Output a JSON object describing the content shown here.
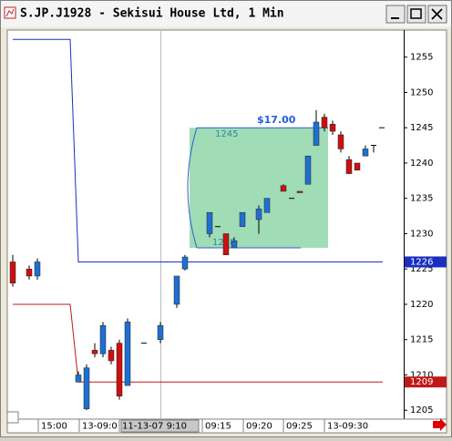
{
  "window_title": "S.JP.J1928 - Sekisui House Ltd, 1 Min",
  "chart_data": {
    "type": "candlestick",
    "up_color": "#1f6fd1",
    "down_color": "#cc1010",
    "ylim": [
      1204,
      1258.7
    ],
    "yticks": [
      1205,
      1210,
      1215,
      1220,
      1225,
      1230,
      1235,
      1240,
      1245,
      1250,
      1255
    ],
    "x_labels": [
      "15:00",
      "13-09:0",
      "11-13-07 9:10",
      "09:15",
      "09:20",
      "09:25",
      "13-09:30"
    ],
    "candles": [
      {
        "open": 1226,
        "high": 1227,
        "low": 1222.5,
        "close": 1223
      },
      null,
      {
        "open": 1225,
        "high": 1225.5,
        "low": 1223.5,
        "close": 1224
      },
      {
        "open": 1224,
        "high": 1226.5,
        "low": 1223.5,
        "close": 1226
      },
      null,
      null,
      null,
      null,
      {
        "open": 1209,
        "high": 1210.5,
        "low": 1209,
        "close": 1210
      },
      {
        "open": 1205.2,
        "high": 1211.5,
        "low": 1205,
        "close": 1211
      },
      {
        "open": 1213.5,
        "high": 1214.5,
        "low": 1212.5,
        "close": 1213
      },
      {
        "open": 1213,
        "high": 1217.5,
        "low": 1212.5,
        "close": 1217
      },
      {
        "open": 1213.5,
        "high": 1214,
        "low": 1211.5,
        "close": 1212
      },
      {
        "open": 1214.5,
        "high": 1215,
        "low": 1206.5,
        "close": 1207
      },
      {
        "open": 1208.5,
        "high": 1218,
        "low": 1208.5,
        "close": 1217.5
      },
      null,
      {
        "open": 1214.5,
        "high": 1214.5,
        "low": 1214.5,
        "close": 1214.5
      },
      null,
      {
        "open": 1215,
        "high": 1217.5,
        "low": 1214.5,
        "close": 1217
      },
      null,
      {
        "open": 1220,
        "high": 1224,
        "low": 1219.5,
        "close": 1224
      },
      {
        "open": 1225,
        "high": 1227,
        "low": 1224.8,
        "close": 1226.7
      },
      null,
      null,
      {
        "open": 1230,
        "high": 1233,
        "low": 1229.5,
        "close": 1233
      },
      {
        "open": 1231,
        "high": 1231,
        "low": 1231,
        "close": 1231
      },
      {
        "open": 1230,
        "high": 1230,
        "low": 1227,
        "close": 1227
      },
      {
        "open": 1228,
        "high": 1229.5,
        "low": 1228,
        "close": 1229
      },
      {
        "open": 1231,
        "high": 1233,
        "low": 1231,
        "close": 1233
      },
      null,
      {
        "open": 1232,
        "high": 1234,
        "low": 1230,
        "close": 1233.5
      },
      {
        "open": 1233,
        "high": 1235,
        "low": 1233,
        "close": 1235
      },
      null,
      {
        "open": 1236.8,
        "high": 1237,
        "low": 1236,
        "close": 1236
      },
      {
        "open": 1235,
        "high": 1235,
        "low": 1235,
        "close": 1235
      },
      {
        "open": 1236,
        "high": 1236,
        "low": 1235.8,
        "close": 1235.8
      },
      {
        "open": 1237,
        "high": 1241,
        "low": 1237,
        "close": 1241
      },
      {
        "open": 1242.5,
        "high": 1247.5,
        "low": 1242.5,
        "close": 1245.8
      },
      {
        "open": 1246.5,
        "high": 1247,
        "low": 1244.5,
        "close": 1245
      },
      {
        "open": 1245.5,
        "high": 1246,
        "low": 1244,
        "close": 1244.5
      },
      {
        "open": 1244,
        "high": 1244.5,
        "low": 1241.5,
        "close": 1242
      },
      {
        "open": 1240.5,
        "high": 1241,
        "low": 1238.5,
        "close": 1238.5
      },
      {
        "open": 1240,
        "high": 1240,
        "low": 1239,
        "close": 1239
      },
      {
        "open": 1241,
        "high": 1242.5,
        "low": 1241,
        "close": 1242
      },
      {
        "open": 1242.5,
        "high": 1242.5,
        "low": 1241.5,
        "close": 1242.5
      },
      {
        "open": 1245,
        "high": 1245,
        "low": 1245,
        "close": 1245
      }
    ],
    "series": [
      {
        "color": "#1a2fc0",
        "values": [
          1257.5,
          1257.5,
          1257.5,
          1257.5,
          1257.5,
          1257.5,
          1257.5,
          1257.5,
          1226,
          1226,
          1226,
          1226,
          1226,
          1226,
          1226,
          1226,
          1226,
          1226,
          1226,
          1226,
          1226,
          1226,
          1226,
          1226,
          1226,
          1226,
          1226,
          1226,
          1226,
          1226,
          1226,
          1226,
          1226,
          1226,
          1226,
          1226,
          1226,
          1226,
          1226,
          1226,
          1226,
          1226,
          1226,
          1226,
          1226,
          1226
        ]
      },
      {
        "color": "#c01818",
        "values": [
          1220,
          1220,
          1220,
          1220,
          1220,
          1220,
          1220,
          1220,
          1209,
          1209,
          1209,
          1209,
          1209,
          1209,
          1209,
          1209,
          1209,
          1209,
          1209,
          1209,
          1209,
          1209,
          1209,
          1209,
          1209,
          1209,
          1209,
          1209,
          1209,
          1209,
          1209,
          1209,
          1209,
          1209,
          1209,
          1209,
          1209,
          1209,
          1209,
          1209,
          1209,
          1209,
          1209,
          1209,
          1209,
          1209
        ]
      }
    ],
    "price_markers": [
      {
        "value": 1226,
        "color": "#1a2fc0"
      },
      {
        "value": 1209,
        "color": "#c01818"
      }
    ],
    "measure": {
      "label": "$17.00",
      "from": 1228,
      "to": 1245,
      "color": "#8fd6a8"
    }
  }
}
